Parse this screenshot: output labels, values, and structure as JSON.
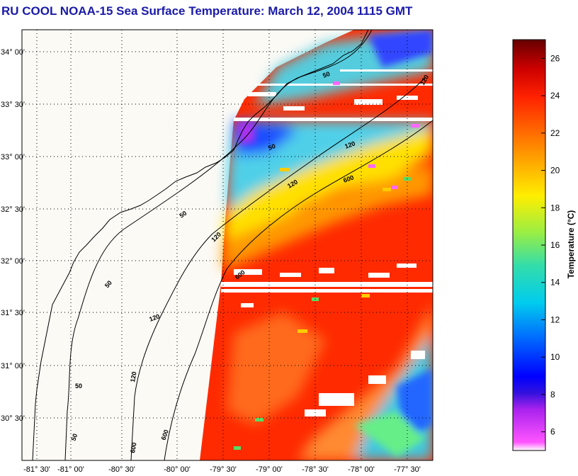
{
  "title": "RU COOL  NOAA-15  Sea Surface Temperature:  March 12, 2004 1115 GMT",
  "map": {
    "lon_ticks": [
      "-81° 30'",
      "-81° 00'",
      "-80° 30'",
      "-80° 00'",
      "-79° 30'",
      "-79° 00'",
      "-78° 30'",
      "-78° 00'",
      "-77° 30'"
    ],
    "lat_ticks": [
      "34° 00'",
      "33° 30'",
      "33° 00'",
      "32° 30'",
      "32° 00'",
      "31° 30'",
      "31° 00'",
      "30° 30'"
    ],
    "isobath_labels": [
      "50",
      "50",
      "50",
      "50",
      "50",
      "50",
      "120",
      "120",
      "120",
      "120",
      "120",
      "120",
      "600",
      "600",
      "600",
      "600"
    ],
    "land_color": "#fcfaf5",
    "no_data_color": "#ffffff"
  },
  "colorbar": {
    "label": "Temperature (°C)",
    "ticks": [
      "26",
      "24",
      "22",
      "20",
      "18",
      "16",
      "14",
      "12",
      "10",
      "8",
      "6"
    ],
    "min": 5,
    "max": 27,
    "colors": [
      "#ff55ff",
      "#cc33ee",
      "#7722dd",
      "#0000ff",
      "#0066ff",
      "#00bbee",
      "#22ddcc",
      "#77ee66",
      "#ccee22",
      "#ffee00",
      "#ffaa00",
      "#ff6600",
      "#ff2200",
      "#dd0000",
      "#990000",
      "#660000"
    ]
  }
}
